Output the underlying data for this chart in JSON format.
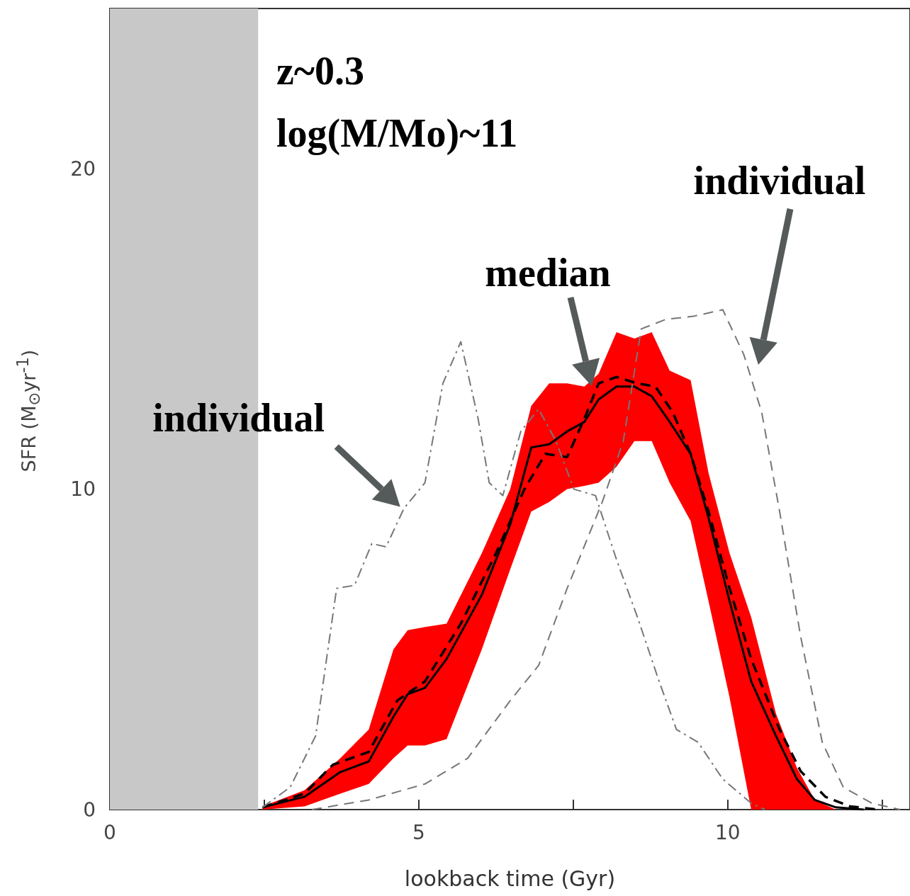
{
  "chart_data": {
    "type": "line",
    "xlabel": "lookback time (Gyr)",
    "ylabel": "SFR (M$_{⊙}$yr$^{-1}$)",
    "xlim": [
      0,
      12.95
    ],
    "ylim": [
      0,
      25
    ],
    "xticks": [
      0,
      {
        "value": 2.5,
        "label": null
      },
      5,
      {
        "value": 7.5,
        "label": null
      },
      10,
      {
        "value": 12.5,
        "label": null
      }
    ],
    "yticks": [
      0,
      10,
      20
    ],
    "grid": false,
    "marker": "none",
    "bands": [
      {
        "axis": "x",
        "from": 0,
        "to": 2.4,
        "color": "#c8c8c8"
      }
    ],
    "series": [
      {
        "color": "#000000",
        "line_style": "solid",
        "x": [
          2.47,
          3.15,
          3.73,
          4.19,
          4.59,
          4.82,
          5.1,
          5.45,
          6.02,
          6.48,
          6.82,
          7.11,
          7.4,
          7.68,
          7.91,
          8.2,
          8.49,
          8.77,
          9.06,
          9.4,
          9.69,
          10.03,
          10.38,
          10.78,
          11.12,
          11.41,
          11.75,
          12.2
        ],
        "values": [
          0.07,
          0.4,
          1.17,
          1.5,
          2.9,
          3.6,
          3.8,
          4.7,
          6.7,
          8.9,
          11.3,
          11.4,
          11.8,
          12.1,
          12.8,
          13.2,
          13.2,
          12.9,
          12.1,
          11.1,
          9.1,
          6.5,
          4.0,
          2.3,
          0.95,
          0.3,
          0.07,
          0
        ],
        "lower": [
          0,
          0.1,
          0.5,
          0.8,
          1.6,
          2.0,
          2.0,
          2.2,
          5.0,
          7.5,
          9.3,
          9.6,
          10.0,
          10.1,
          10.2,
          10.7,
          11.5,
          11.5,
          10.2,
          9.0,
          6.5,
          3.5,
          0,
          0,
          0,
          0,
          0,
          0
        ],
        "upper": [
          0.1,
          0.6,
          1.6,
          2.5,
          5.0,
          5.6,
          5.7,
          5.8,
          8.0,
          10.0,
          12.6,
          13.3,
          13.3,
          13.2,
          13.6,
          14.9,
          14.7,
          14.9,
          13.7,
          13.4,
          10.5,
          8.0,
          6.0,
          3.0,
          1.3,
          0.3,
          0,
          0
        ]
      },
      {
        "color": "#000000",
        "line_style": "dashed",
        "x": [
          2.47,
          3.15,
          3.61,
          4.19,
          4.65,
          5.1,
          5.68,
          6.25,
          6.71,
          7.05,
          7.4,
          7.68,
          7.91,
          8.2,
          8.54,
          8.83,
          9.11,
          9.4,
          9.69,
          10.03,
          10.38,
          10.84,
          11.18,
          11.58,
          11.98,
          12.44
        ],
        "values": [
          0.07,
          0.5,
          1.4,
          1.8,
          3.4,
          4.0,
          5.8,
          8.0,
          10.0,
          11.1,
          11.0,
          12.2,
          13.3,
          13.5,
          13.3,
          13.2,
          12.4,
          11.1,
          9.3,
          6.9,
          4.7,
          2.5,
          1.2,
          0.4,
          0.1,
          0
        ]
      },
      {
        "color": "#777777",
        "line_style": "dashdot",
        "x": [
          2.47,
          2.92,
          3.33,
          3.67,
          3.96,
          4.24,
          4.47,
          4.76,
          5.1,
          5.39,
          5.68,
          5.96,
          6.14,
          6.36,
          6.65,
          6.94,
          7.22,
          7.51,
          7.86,
          8.2,
          8.54,
          8.89,
          9.17,
          9.52,
          9.92,
          10.38,
          10.6
        ],
        "values": [
          0.07,
          0.7,
          2.3,
          6.9,
          7.0,
          8.3,
          8.2,
          9.4,
          10.2,
          13.3,
          14.6,
          12.2,
          10.2,
          9.8,
          11.8,
          12.5,
          11.5,
          10.0,
          9.8,
          7.8,
          6.0,
          4.0,
          2.5,
          2.1,
          0.95,
          0.2,
          0
        ]
      },
      {
        "color": "#777777",
        "line_style": "dashed",
        "x": [
          3.27,
          4.19,
          5.1,
          5.79,
          6.48,
          6.94,
          7.4,
          7.97,
          8.31,
          8.6,
          9.0,
          9.46,
          9.92,
          10.26,
          10.55,
          10.84,
          11.18,
          11.53,
          11.87,
          12.33,
          12.79
        ],
        "values": [
          0,
          0.3,
          0.8,
          1.6,
          3.4,
          4.5,
          6.9,
          9.6,
          11.5,
          15.0,
          15.3,
          15.4,
          15.6,
          14.2,
          12.4,
          9.3,
          5.4,
          2.1,
          0.7,
          0.2,
          0
        ]
      }
    ],
    "annotations": [
      "z~0.3",
      "log(M/Mo)~11",
      {
        "text": "individual",
        "x": 4.7,
        "y": 9.45
      },
      "median",
      "individual"
    ]
  }
}
